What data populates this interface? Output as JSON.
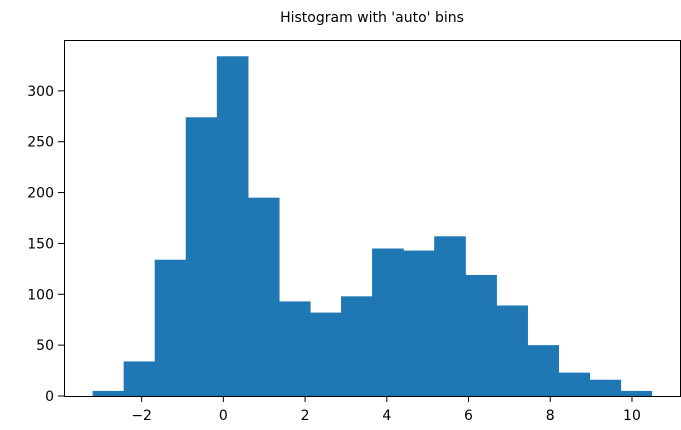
{
  "chart_data": {
    "type": "histogram",
    "title": "Histogram with 'auto' bins",
    "xlabel": "",
    "ylabel": "",
    "bin_edges": [
      -3.2,
      -2.44,
      -1.68,
      -0.92,
      -0.16,
      0.6,
      1.36,
      2.12,
      2.88,
      3.64,
      4.4,
      5.16,
      5.92,
      6.68,
      7.44,
      8.2,
      8.96,
      9.72,
      10.48
    ],
    "counts": [
      5,
      34,
      134,
      274,
      334,
      195,
      93,
      82,
      98,
      145,
      143,
      157,
      119,
      89,
      50,
      23,
      16,
      5
    ],
    "bar_color": "#1f77b4",
    "xlim": [
      -3.9,
      11.2
    ],
    "ylim": [
      0,
      350
    ],
    "xticks": [
      -2,
      0,
      2,
      4,
      6,
      8,
      10
    ],
    "xtick_labels": [
      "−2",
      "0",
      "2",
      "4",
      "6",
      "8",
      "10"
    ],
    "yticks": [
      0,
      50,
      100,
      150,
      200,
      250,
      300
    ],
    "ytick_labels": [
      "0",
      "50",
      "100",
      "150",
      "200",
      "250",
      "300"
    ],
    "grid": false
  }
}
